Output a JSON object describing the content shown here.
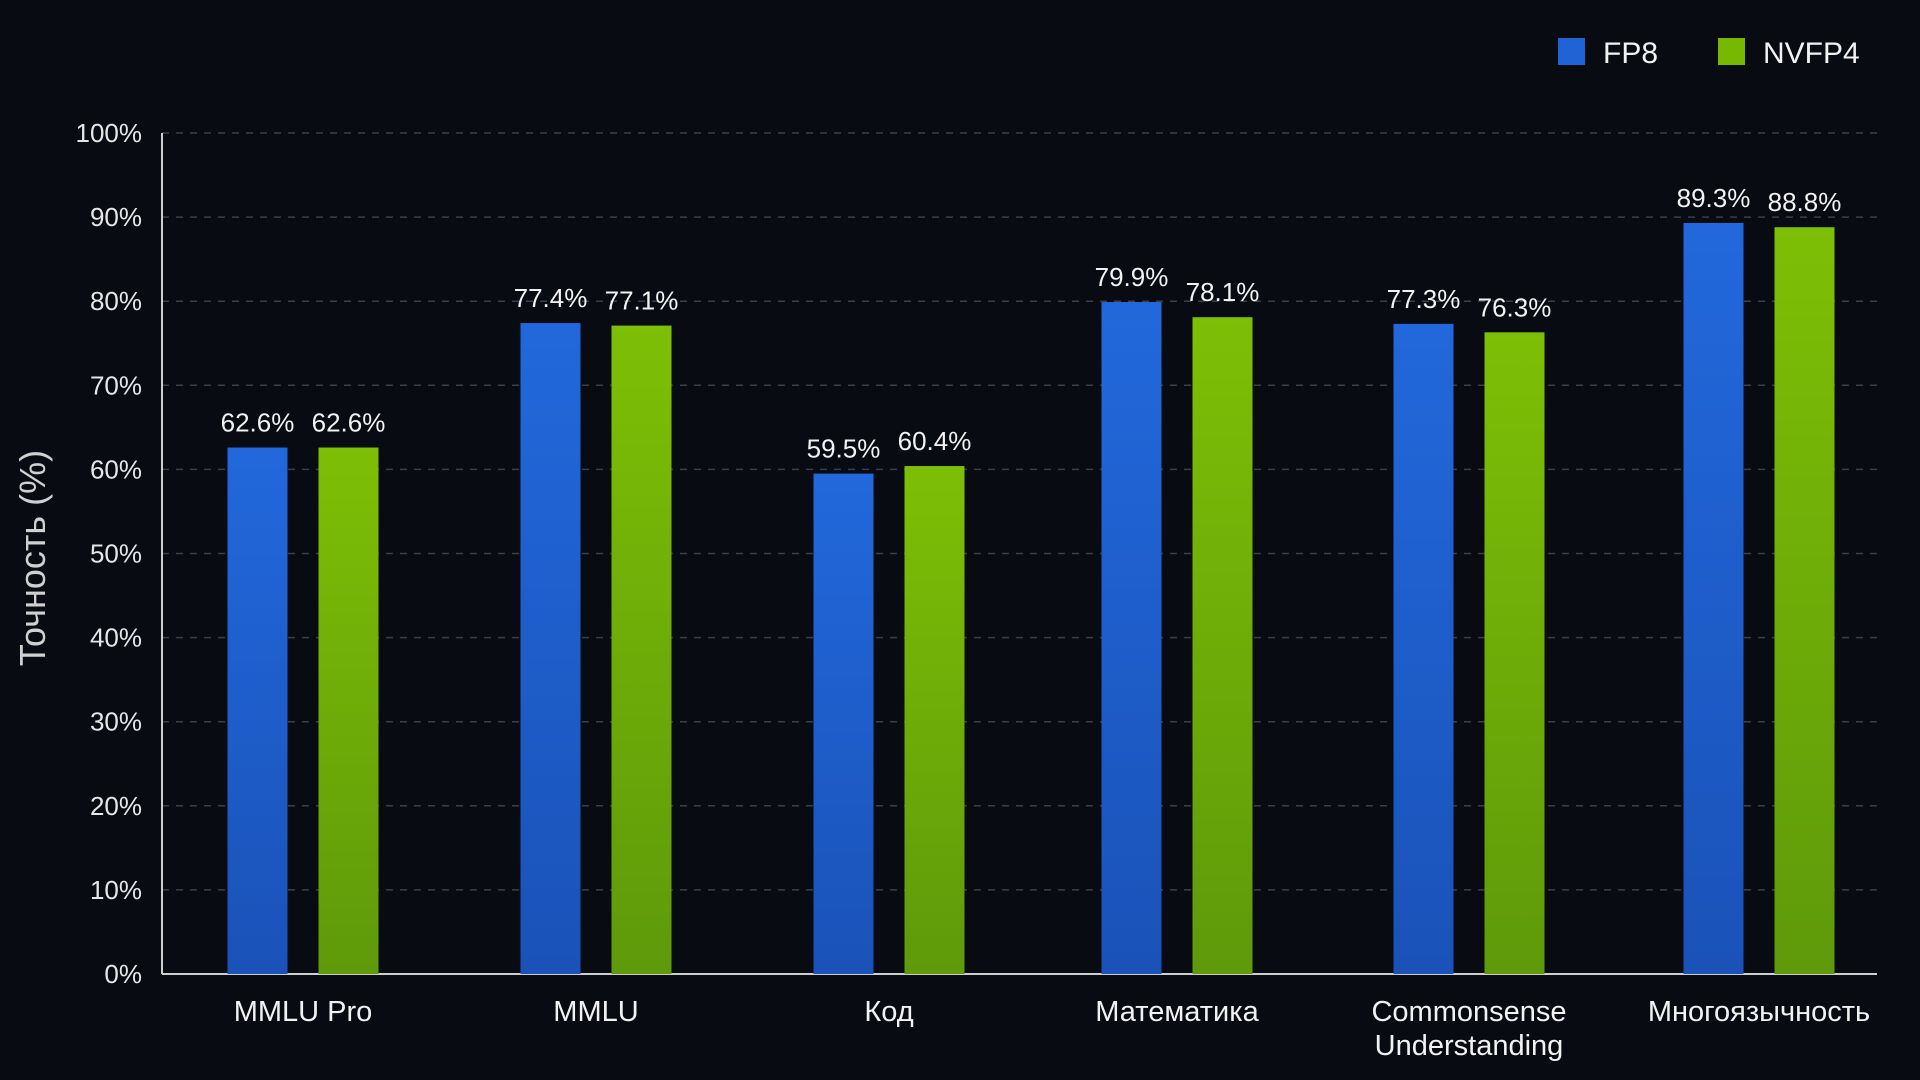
{
  "chart_data": {
    "type": "bar",
    "categories": [
      [
        "MMLU Pro"
      ],
      [
        "MMLU"
      ],
      [
        "Код"
      ],
      [
        "Математика"
      ],
      [
        "Commonsense",
        "Understanding"
      ],
      [
        "Многоязычность"
      ]
    ],
    "series": [
      {
        "name": "FP8",
        "color": "#1f63d6",
        "values": [
          62.6,
          77.4,
          59.5,
          79.9,
          77.3,
          89.3
        ],
        "labels": [
          "62.6%",
          "77.4%",
          "59.5%",
          "79.9%",
          "77.3%",
          "89.3%"
        ]
      },
      {
        "name": "NVFP4",
        "color": "#76b900",
        "values": [
          62.6,
          77.1,
          60.4,
          78.1,
          76.3,
          88.8
        ],
        "labels": [
          "62.6%",
          "77.1%",
          "60.4%",
          "78.1%",
          "76.3%",
          "88.8%"
        ]
      }
    ],
    "ylabel": "Точность (%)",
    "ylim": [
      0,
      100
    ],
    "yticks": [
      "0%",
      "10%",
      "20%",
      "30%",
      "40%",
      "50%",
      "60%",
      "70%",
      "80%",
      "90%",
      "100%"
    ],
    "grid": true,
    "legend_position": "top-right"
  }
}
